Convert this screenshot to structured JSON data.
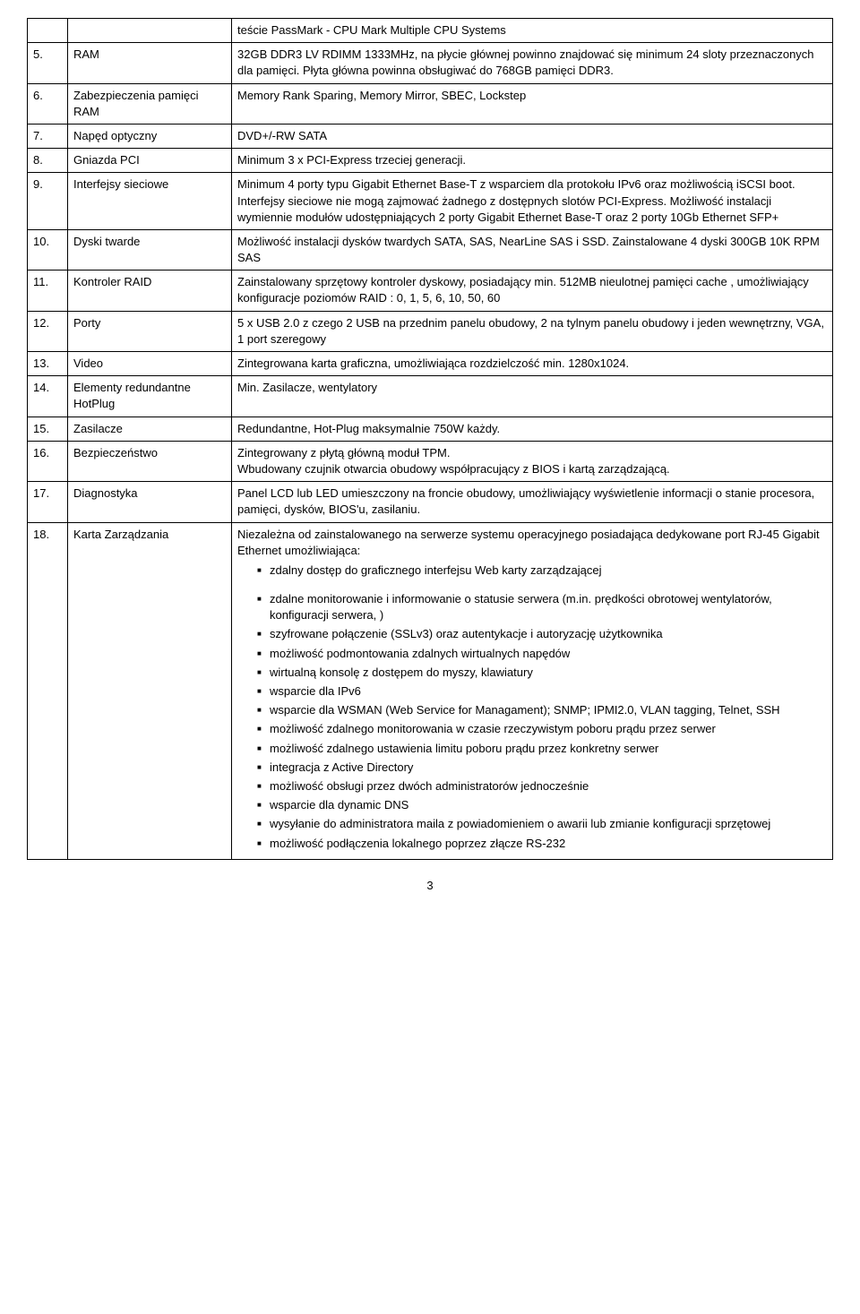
{
  "rows": [
    {
      "num": "",
      "label": "",
      "desc": "teście PassMark - CPU Mark Multiple CPU Systems"
    },
    {
      "num": "5.",
      "label": "RAM",
      "desc": "32GB DDR3 LV RDIMM 1333MHz, na płycie głównej powinno znajdować się minimum 24 sloty przeznaczonych dla pamięci. Płyta główna powinna obsługiwać do 768GB pamięci DDR3."
    },
    {
      "num": "6.",
      "label": "Zabezpieczenia pamięci RAM",
      "desc": "Memory Rank Sparing, Memory Mirror, SBEC, Lockstep"
    },
    {
      "num": "7.",
      "label": "Napęd optyczny",
      "desc": "DVD+/-RW SATA"
    },
    {
      "num": "8.",
      "label": "Gniazda PCI",
      "desc": "Minimum 3 x PCI-Express trzeciej generacji."
    },
    {
      "num": "9.",
      "label": "Interfejsy sieciowe",
      "desc": "Minimum 4 porty typu Gigabit Ethernet Base-T z wsparciem dla protokołu IPv6 oraz możliwością iSCSI boot. Interfejsy sieciowe nie mogą zajmować żadnego z dostępnych slotów PCI-Express. Możliwość instalacji wymiennie modułów udostępniających 2 porty Gigabit Ethernet Base-T oraz 2 porty 10Gb Ethernet SFP+"
    },
    {
      "num": "10.",
      "label": "Dyski twarde",
      "desc": "Możliwość instalacji dysków twardych SATA, SAS, NearLine SAS i SSD. Zainstalowane 4 dyski 300GB 10K RPM SAS"
    },
    {
      "num": "11.",
      "label": "Kontroler RAID",
      "desc": "Zainstalowany sprzętowy kontroler dyskowy, posiadający min. 512MB nieulotnej pamięci cache , umożliwiający konfiguracje poziomów RAID : 0, 1, 5, 6, 10, 50, 60"
    },
    {
      "num": "12.",
      "label": "Porty",
      "desc": "5 x USB 2.0 z czego 2 USB na przednim panelu obudowy, 2 na tylnym panelu obudowy i jeden wewnętrzny, VGA, 1 port szeregowy"
    },
    {
      "num": "13.",
      "label": "Video",
      "desc": "Zintegrowana karta graficzna, umożliwiająca rozdzielczość min. 1280x1024."
    },
    {
      "num": "14.",
      "label": "Elementy redundantne HotPlug",
      "desc": "Min. Zasilacze, wentylatory"
    },
    {
      "num": "15.",
      "label": "Zasilacze",
      "desc": "Redundantne, Hot-Plug maksymalnie 750W każdy."
    },
    {
      "num": "16.",
      "label": "Bezpieczeństwo",
      "desc": "Zintegrowany z płytą główną moduł TPM.\nWbudowany czujnik otwarcia obudowy współpracujący z BIOS i kartą zarządzającą."
    },
    {
      "num": "17.",
      "label": "Diagnostyka",
      "desc": "Panel LCD lub LED umieszczony na froncie obudowy, umożliwiający wyświetlenie informacji o stanie procesora, pamięci, dysków, BIOS'u, zasilaniu."
    }
  ],
  "row18": {
    "num": "18.",
    "label": "Karta Zarządzania",
    "intro": "Niezależna od zainstalowanego na serwerze systemu operacyjnego posiadająca dedykowane port RJ-45 Gigabit Ethernet umożliwiająca:",
    "bullets": [
      "zdalny dostęp do graficznego interfejsu Web karty zarządzającej",
      "zdalne monitorowanie i informowanie o statusie serwera (m.in. prędkości obrotowej wentylatorów, konfiguracji serwera, )",
      "szyfrowane połączenie (SSLv3) oraz autentykacje i autoryzację użytkownika",
      "możliwość podmontowania zdalnych wirtualnych napędów",
      "wirtualną konsolę z dostępem do myszy, klawiatury",
      "wsparcie dla IPv6",
      "wsparcie dla WSMAN (Web Service for Managament); SNMP; IPMI2.0, VLAN tagging, Telnet, SSH",
      "możliwość zdalnego monitorowania w czasie rzeczywistym poboru prądu przez serwer",
      "możliwość zdalnego ustawienia limitu poboru prądu przez konkretny serwer",
      "integracja z Active Directory",
      "możliwość obsługi przez dwóch administratorów jednocześnie",
      "wsparcie dla dynamic DNS",
      "wysyłanie do administratora maila z powiadomieniem o awarii lub zmianie konfiguracji sprzętowej",
      "możliwość podłączenia lokalnego poprzez złącze RS-232"
    ]
  },
  "page_number": "3"
}
